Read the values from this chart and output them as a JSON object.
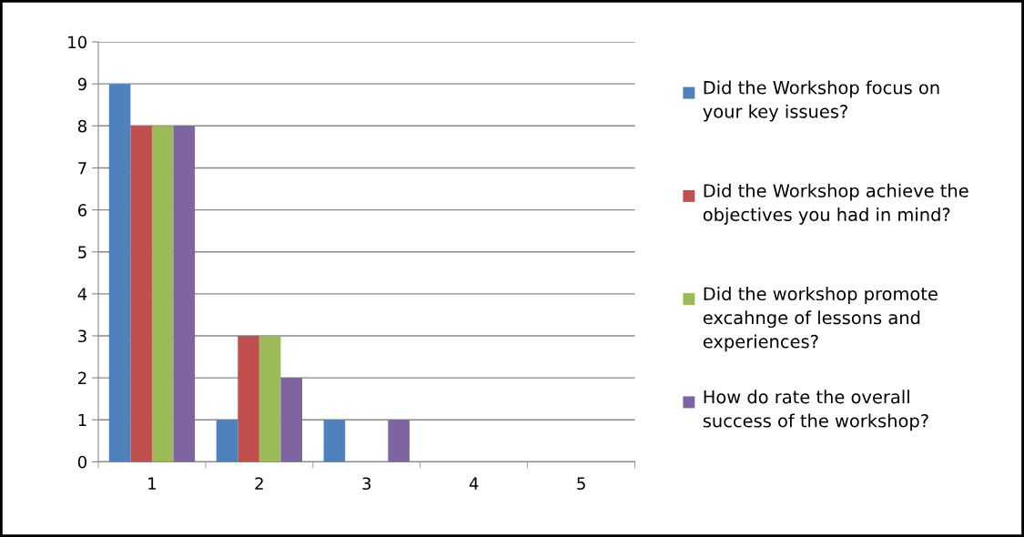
{
  "chart_data": {
    "type": "bar",
    "categories": [
      "1",
      "2",
      "3",
      "4",
      "5"
    ],
    "series": [
      {
        "name": "Did the Workshop focus on your key issues?",
        "color": "#4f81bd",
        "values": [
          9,
          1,
          1,
          0,
          0
        ]
      },
      {
        "name": "Did the Workshop achieve the objectives you had in mind?",
        "color": "#c0504d",
        "values": [
          8,
          3,
          0,
          0,
          0
        ]
      },
      {
        "name": "Did the workshop promote excahnge of lessons and experiences?",
        "color": "#9bbb59",
        "values": [
          8,
          3,
          0,
          0,
          0
        ]
      },
      {
        "name": "How do rate the overall success of the workshop?",
        "color": "#8064a2",
        "values": [
          8,
          2,
          1,
          0,
          0
        ]
      }
    ],
    "ylim": [
      0,
      10
    ],
    "yticks": [
      0,
      1,
      2,
      3,
      4,
      5,
      6,
      7,
      8,
      9,
      10
    ],
    "grid": "y",
    "legend": "right"
  }
}
